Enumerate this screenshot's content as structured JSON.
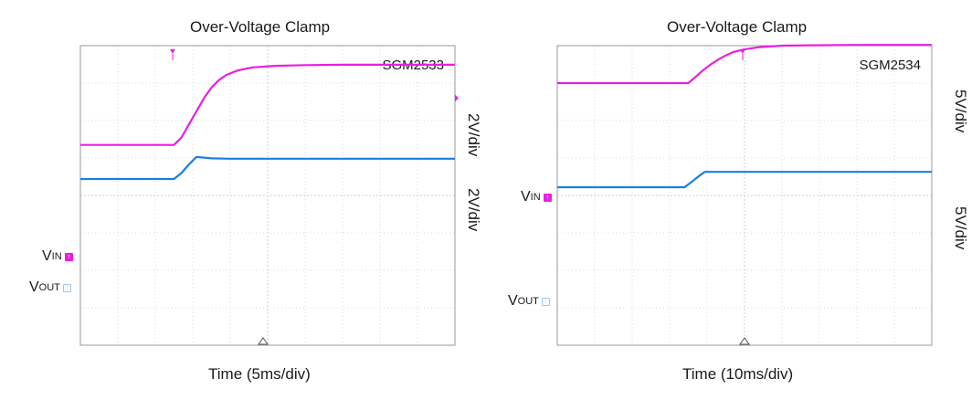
{
  "colors": {
    "vin": "#e81fe0",
    "vout": "#1a7fe0",
    "grid": "#cfcfcf",
    "frame": "#9a9a9a"
  },
  "chart_data": [
    {
      "type": "line",
      "title": "Over-Voltage Clamp",
      "model": "SGM2533",
      "xlabel": "Time (5ms/div)",
      "xlim": [
        0,
        50
      ],
      "ylim": [
        0,
        8
      ],
      "grid": true,
      "series": [
        {
          "name": "V_IN",
          "scale": "2V/div",
          "ground_div": 2.85,
          "x": [
            0,
            12.5,
            13.5,
            14.5,
            15.5,
            16.5,
            17.5,
            18.5,
            19.5,
            21,
            23,
            26,
            30,
            35,
            50
          ],
          "y": [
            5.35,
            5.35,
            5.55,
            5.9,
            6.25,
            6.6,
            6.88,
            7.08,
            7.22,
            7.34,
            7.42,
            7.46,
            7.48,
            7.49,
            7.49
          ]
        },
        {
          "name": "V_OUT",
          "scale": "2V/div",
          "ground_div": 1.85,
          "x": [
            0,
            12.5,
            13.5,
            14.5,
            15.5,
            16.5,
            17.5,
            20,
            25,
            50
          ],
          "y": [
            4.44,
            4.44,
            4.6,
            4.83,
            5.03,
            5.01,
            4.99,
            4.98,
            4.98,
            4.98
          ]
        }
      ],
      "channel_labels": {
        "vin": {
          "main": "V",
          "sub": "IN"
        },
        "vout": {
          "main": "V",
          "sub": "OUT"
        }
      }
    },
    {
      "type": "line",
      "title": "Over-Voltage Clamp",
      "model": "SGM2534",
      "xlabel": "Time (10ms/div)",
      "xlim": [
        0,
        50
      ],
      "ylim": [
        0,
        8
      ],
      "grid": true,
      "series": [
        {
          "name": "V_IN",
          "scale": "5V/div",
          "ground_div": 4.9,
          "x": [
            0,
            17.5,
            18.5,
            19.5,
            20.5,
            21.5,
            22.5,
            23.5,
            25,
            27,
            30,
            34,
            40,
            50
          ],
          "y": [
            7.0,
            7.0,
            7.17,
            7.35,
            7.5,
            7.63,
            7.74,
            7.83,
            7.9,
            7.96,
            8.0,
            8.01,
            8.02,
            8.02
          ]
        },
        {
          "name": "V_OUT",
          "scale": "5V/div",
          "ground_div": 1.45,
          "x": [
            0,
            17,
            18,
            19,
            19.7,
            20.5,
            50
          ],
          "y": [
            4.22,
            4.22,
            4.37,
            4.53,
            4.63,
            4.63,
            4.63
          ]
        }
      ],
      "channel_labels": {
        "vin": {
          "main": "V",
          "sub": "IN"
        },
        "vout": {
          "main": "V",
          "sub": "OUT"
        }
      }
    }
  ]
}
